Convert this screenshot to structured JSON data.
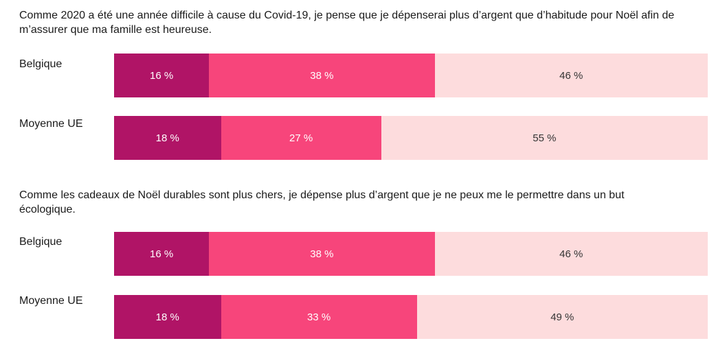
{
  "colors": {
    "segment_1": "#b01466",
    "segment_2": "#f7457b",
    "segment_3": "#fddcdd",
    "label_light": "#ffffff",
    "label_dark": "#333333"
  },
  "chart_data": [
    {
      "type": "bar",
      "orientation": "horizontal",
      "stacked": true,
      "title": "Comme 2020 a été une année difficile à cause du Covid-19, je pense que je dépenserai plus d’argent que d’habitude pour Noël afin de m’assurer que ma famille est heureuse.",
      "categories": [
        "Belgique",
        "Moyenne UE"
      ],
      "series": [
        {
          "values": [
            16,
            18
          ],
          "labels": [
            "16 %",
            "18 %"
          ]
        },
        {
          "values": [
            38,
            27
          ],
          "labels": [
            "38 %",
            "27 %"
          ]
        },
        {
          "values": [
            46,
            55
          ],
          "labels": [
            "46 %",
            "55 %"
          ]
        }
      ],
      "xlim": [
        0,
        100
      ]
    },
    {
      "type": "bar",
      "orientation": "horizontal",
      "stacked": true,
      "title": "Comme les cadeaux de Noël durables sont plus chers, je dépense plus d’argent que je ne peux me le permettre dans un but écologique.",
      "categories": [
        "Belgique",
        "Moyenne UE"
      ],
      "series": [
        {
          "values": [
            16,
            18
          ],
          "labels": [
            "16 %",
            "18 %"
          ]
        },
        {
          "values": [
            38,
            33
          ],
          "labels": [
            "38 %",
            "33 %"
          ]
        },
        {
          "values": [
            46,
            49
          ],
          "labels": [
            "46 %",
            "49 %"
          ]
        }
      ],
      "xlim": [
        0,
        100
      ]
    }
  ]
}
